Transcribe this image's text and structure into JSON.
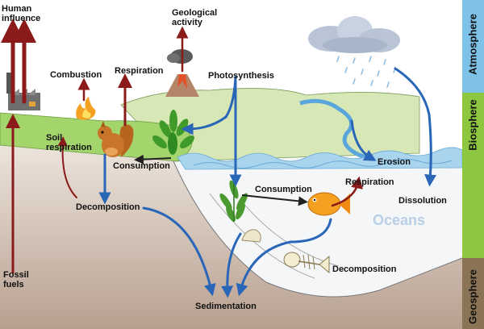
{
  "labels": {
    "human_influence": "Human\ninfluence",
    "geological_activity": "Geological\nactivity",
    "combustion": "Combustion",
    "respiration_land": "Respiration",
    "photosynthesis": "Photosynthesis",
    "soil_respiration": "Soil\nrespiration",
    "consumption_land": "Consumption",
    "decomposition_land": "Decomposition",
    "consumption_ocean": "Consumption",
    "respiration_ocean": "Respiration",
    "erosion": "Erosion",
    "dissolution": "Dissolution",
    "oceans": "Oceans",
    "decomposition_ocean": "Decomposition",
    "sedimentation": "Sedimentation",
    "fossil_fuels": "Fossil\nfuels"
  },
  "spheres": [
    {
      "name": "Atmosphere",
      "color": "#7ec2e8"
    },
    {
      "name": "Biosphere",
      "color": "#8dc63f"
    },
    {
      "name": "Geosphere",
      "color": "#8b7355"
    }
  ],
  "colors": {
    "release_arrow": "#8b1a1a",
    "uptake_arrow": "#2a66b8",
    "land": "#a3d56c",
    "hill": "#d7e8b6",
    "ocean": "#a8d4ee",
    "ground": "#c9b8a8"
  },
  "icons": [
    "factory-icon",
    "volcano-icon",
    "fire-icon",
    "squirrel-icon",
    "plant-icon",
    "seaweed-icon",
    "fish-icon",
    "fish-skeleton-icon",
    "shell-icon",
    "cloud-icon",
    "rain-icon",
    "river-icon"
  ]
}
